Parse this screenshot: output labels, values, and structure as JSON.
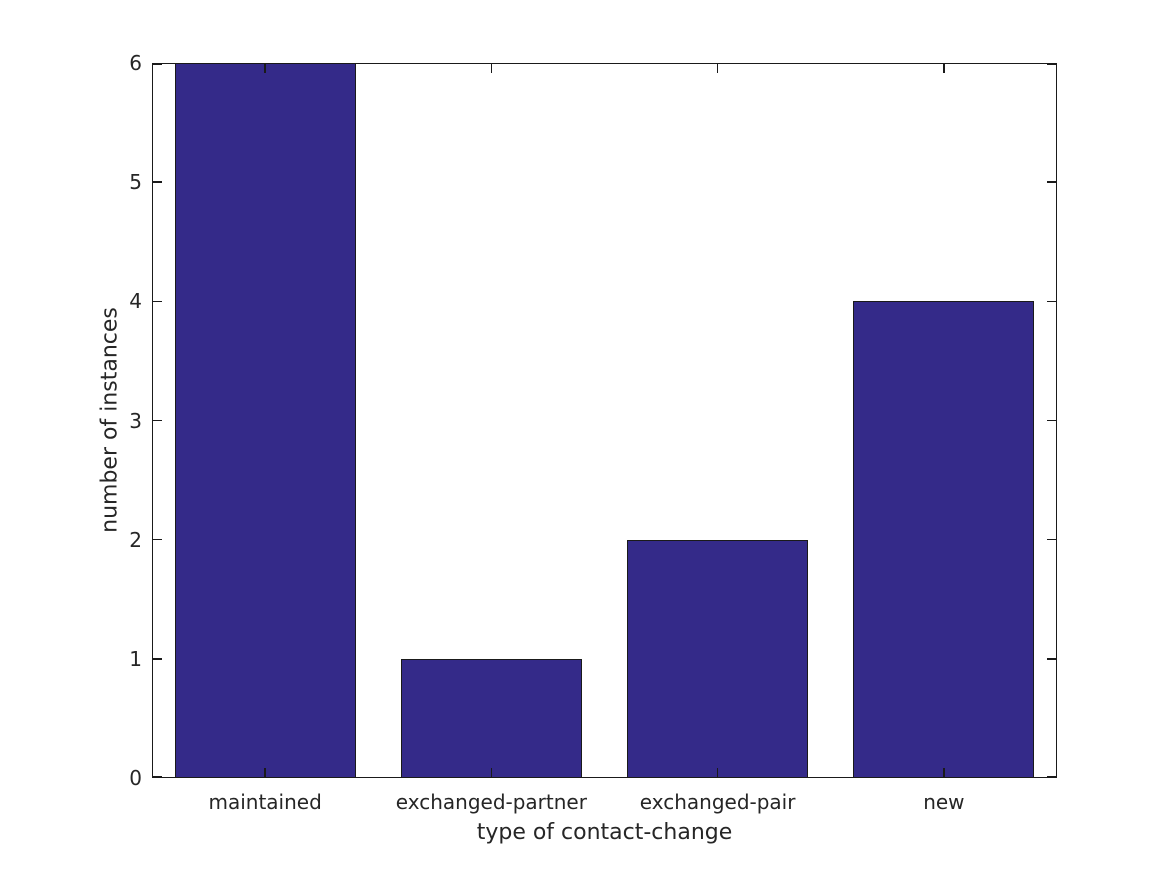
{
  "figure": {
    "background": "#ffffff"
  },
  "chart_data": {
    "type": "bar",
    "categories": [
      "maintained",
      "exchanged-partner",
      "exchanged-pair",
      "new"
    ],
    "values": [
      6,
      1,
      2,
      4
    ],
    "title": "",
    "xlabel": "type of contact-change",
    "ylabel": "number of instances",
    "ylim": [
      0,
      6
    ],
    "yticks": [
      0,
      1,
      2,
      3,
      4,
      5,
      6
    ],
    "bar_width_fraction": 0.8,
    "grid": false,
    "box": true,
    "tick_direction": "in",
    "colors": {
      "bar_fill": "#342a89",
      "bar_edge": "#1a1a1a",
      "axis": "#1a1a1a",
      "text": "#262626"
    }
  }
}
